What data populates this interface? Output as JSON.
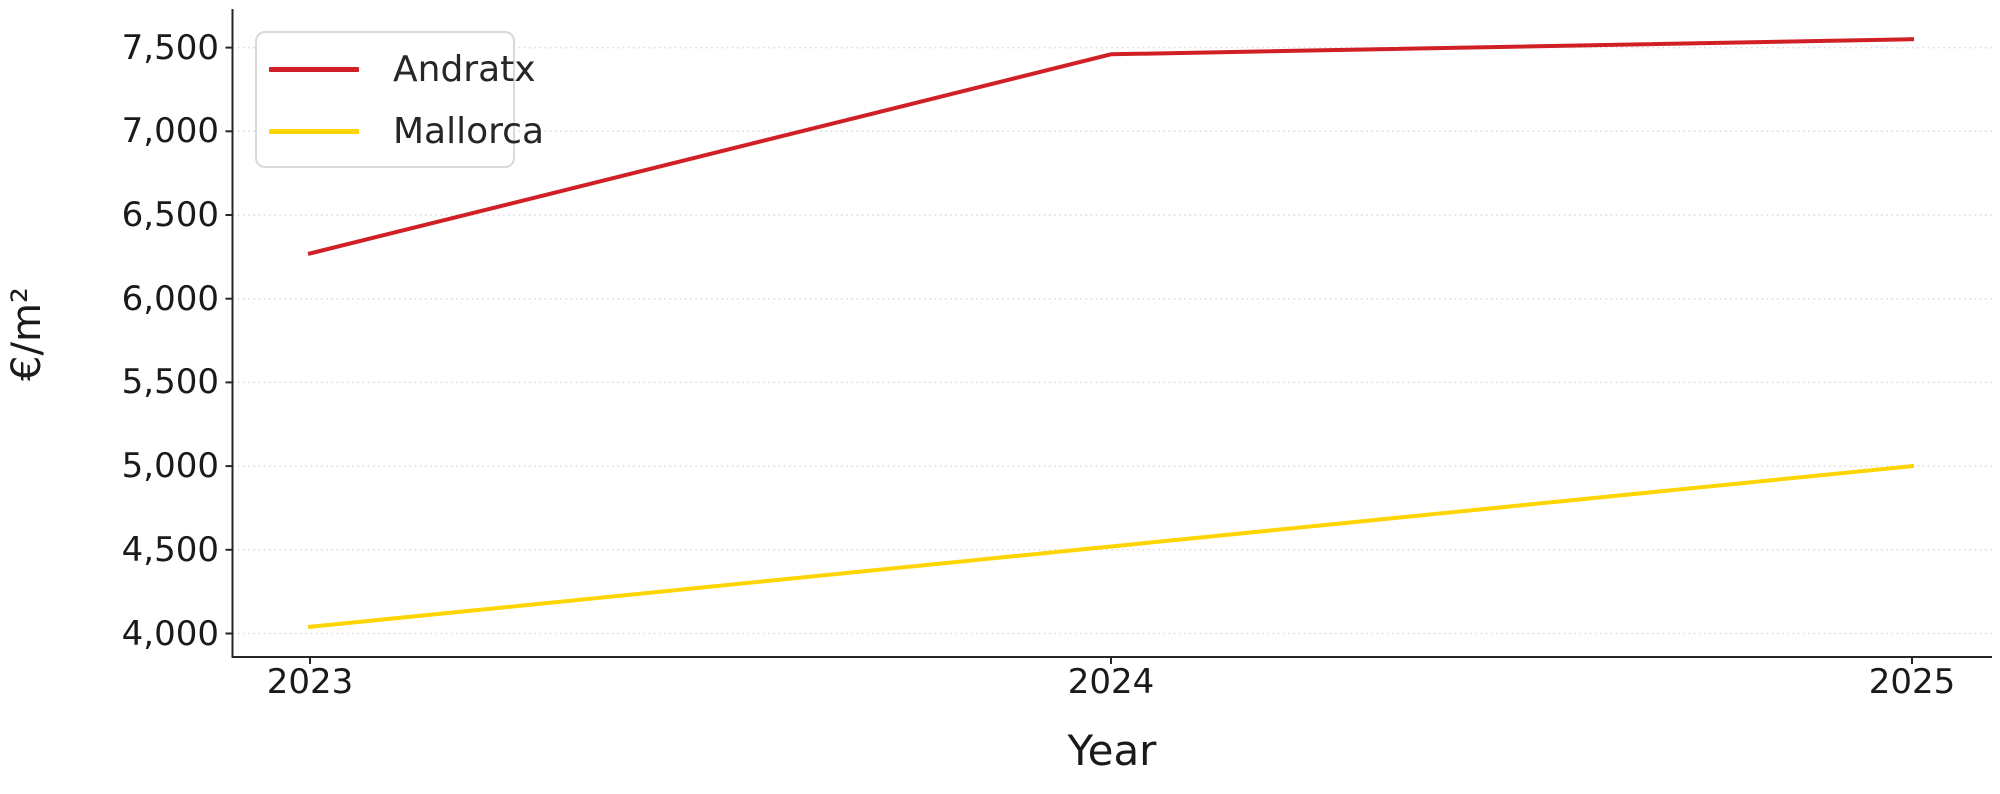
{
  "chart_data": {
    "type": "line",
    "title": "",
    "xlabel": "Year",
    "ylabel": "€/m²",
    "categories": [
      "2023",
      "2024",
      "2025"
    ],
    "series": [
      {
        "name": "Andratx",
        "color": "#d02026",
        "values": [
          6270,
          7460,
          7550
        ]
      },
      {
        "name": "Mallorca",
        "color": "#fed402",
        "values": [
          4040,
          4520,
          5000
        ]
      }
    ],
    "y_ticks": [
      4000,
      4500,
      5000,
      5500,
      6000,
      6500,
      7000,
      7500
    ],
    "y_tick_labels": [
      "4,000",
      "4,500",
      "5,000",
      "5,500",
      "6,000",
      "6,500",
      "7,000",
      "7,500"
    ],
    "ylim": [
      3860,
      7730
    ],
    "grid": "horizontal-dotted",
    "grid_color": "#dedede",
    "axis_color": "#262626",
    "legend_position": "top-left"
  }
}
